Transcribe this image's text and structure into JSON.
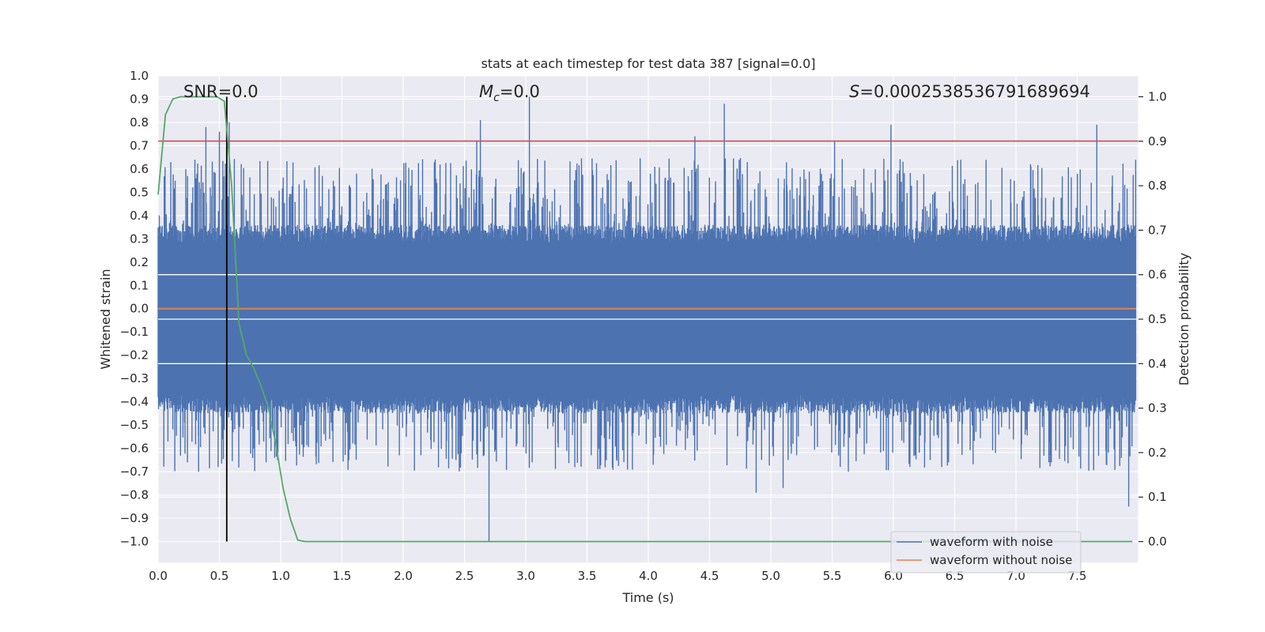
{
  "chart_data": {
    "type": "line",
    "title": "stats at each timestep for test data 387 [signal=0.0]",
    "xlabel": "Time (s)",
    "ylabel": "Whitened strain",
    "y2label": "Detection probability",
    "xlim": [
      0.0,
      8.0
    ],
    "ylim": [
      -1.09,
      1.0
    ],
    "y2lim": [
      -0.047,
      1.047
    ],
    "x_ticks": [
      0.0,
      0.5,
      1.0,
      1.5,
      2.0,
      2.5,
      3.0,
      3.5,
      4.0,
      4.5,
      5.0,
      5.5,
      6.0,
      6.5,
      7.0,
      7.5
    ],
    "x_tick_labels": [
      "0.0",
      "0.5",
      "1.0",
      "1.5",
      "2.0",
      "2.5",
      "3.0",
      "3.5",
      "4.0",
      "4.5",
      "5.0",
      "5.5",
      "6.0",
      "6.5",
      "7.0",
      "7.5"
    ],
    "y_ticks": [
      1.0,
      0.9,
      0.8,
      0.7,
      0.6,
      0.5,
      0.4,
      0.3,
      0.2,
      0.1,
      0.0,
      -0.1,
      -0.2,
      -0.3,
      -0.4,
      -0.5,
      -0.6,
      -0.7,
      -0.8,
      -0.9,
      -1.0
    ],
    "y_tick_labels": [
      "1.0",
      "0.9",
      "0.8",
      "0.7",
      "0.6",
      "0.5",
      "0.4",
      "0.3",
      "0.2",
      "0.1",
      "0.0",
      "−0.1",
      "−0.2",
      "−0.3",
      "−0.4",
      "−0.5",
      "−0.6",
      "−0.7",
      "−0.8",
      "−0.9",
      "−1.0"
    ],
    "y2_ticks": [
      1.0,
      0.9,
      0.8,
      0.7,
      0.6,
      0.5,
      0.4,
      0.3,
      0.2,
      0.1,
      0.0
    ],
    "y2_tick_labels": [
      "1.0",
      "0.9",
      "0.8",
      "0.7",
      "0.6",
      "0.5",
      "0.4",
      "0.3",
      "0.2",
      "0.1",
      "0.0"
    ],
    "grid": true,
    "legend_placement": "bottom-right",
    "annotations": {
      "snr": "SNR=0.0",
      "mc_symbol": "M",
      "mc_sub": "c",
      "mc_value": "=0.0",
      "s_symbol": "S",
      "s_value": "=0.0002538536791689694"
    },
    "series": [
      {
        "name": "waveform with noise",
        "color": "#4c72b0",
        "kind": "noise",
        "band": [
          -0.42,
          0.33
        ],
        "peaks": [
          {
            "x": 0.24,
            "y": 0.57
          },
          {
            "x": 0.3,
            "y": 0.64
          },
          {
            "x": 0.39,
            "y": 0.78
          },
          {
            "x": 0.5,
            "y": 0.76
          },
          {
            "x": 0.58,
            "y": 0.8
          },
          {
            "x": 2.6,
            "y": 0.72
          },
          {
            "x": 2.63,
            "y": 0.81
          },
          {
            "x": 3.03,
            "y": 0.91
          },
          {
            "x": 4.38,
            "y": 0.74
          },
          {
            "x": 4.62,
            "y": 0.88
          },
          {
            "x": 5.52,
            "y": 0.72
          },
          {
            "x": 5.98,
            "y": 0.79
          },
          {
            "x": 7.66,
            "y": 0.79
          },
          {
            "x": 0.33,
            "y": -0.7
          },
          {
            "x": 0.49,
            "y": -0.68
          },
          {
            "x": 2.7,
            "y": -1.0
          },
          {
            "x": 4.88,
            "y": -0.79
          },
          {
            "x": 5.1,
            "y": -0.77
          },
          {
            "x": 7.92,
            "y": -0.85
          },
          {
            "x": 3.4,
            "y": -0.68
          },
          {
            "x": 6.3,
            "y": -0.65
          }
        ]
      },
      {
        "name": "waveform without noise",
        "color": "#dd8452",
        "kind": "constant",
        "value": 0.0
      },
      {
        "color": "#55a868",
        "kind": "probability",
        "axis": "y2",
        "x": [
          0.0,
          0.06,
          0.12,
          0.18,
          0.24,
          0.3,
          0.36,
          0.42,
          0.48,
          0.54,
          0.6,
          0.66,
          0.72,
          0.78,
          0.84,
          0.9,
          0.96,
          1.02,
          1.08,
          1.14,
          1.2,
          7.95
        ],
        "values": [
          0.78,
          0.96,
          0.995,
          1.0,
          1.0,
          1.0,
          1.0,
          1.0,
          1.0,
          0.99,
          0.8,
          0.49,
          0.42,
          0.39,
          0.35,
          0.3,
          0.22,
          0.12,
          0.05,
          0.003,
          0.0,
          0.0
        ]
      }
    ],
    "threshold_line": {
      "value": 0.72,
      "color": "#c44e52"
    },
    "vertical_marker": {
      "x": 0.56,
      "y_from": -1.0,
      "y_to": 0.91,
      "color": "#000000"
    }
  }
}
